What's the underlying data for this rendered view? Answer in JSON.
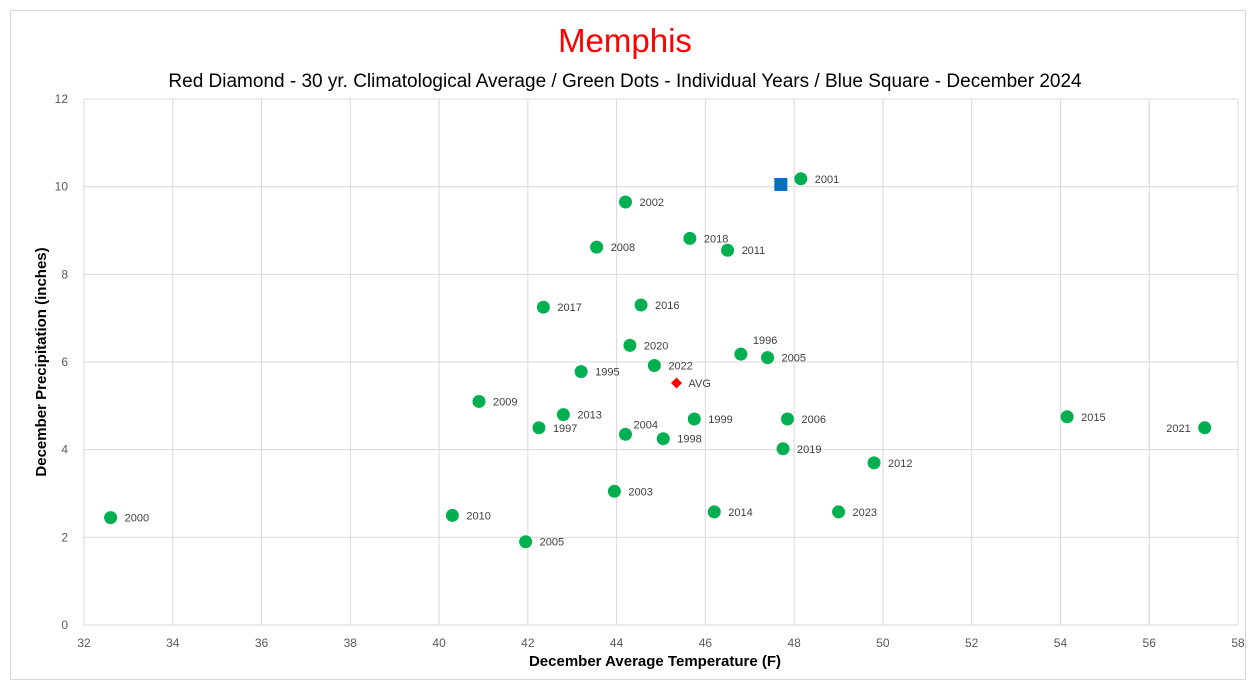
{
  "chart_data": {
    "type": "scatter",
    "title": "Memphis",
    "subtitle": "Red Diamond - 30 yr. Climatological Average / Green Dots - Individual Years / Blue Square - December 2024",
    "xlabel": "December Average Temperature (F)",
    "ylabel": "December Precipitation (inches)",
    "xlim": [
      32,
      58
    ],
    "ylim": [
      0,
      12
    ],
    "x_ticks": [
      32,
      34,
      36,
      38,
      40,
      42,
      44,
      46,
      48,
      50,
      52,
      54,
      56,
      58
    ],
    "y_ticks": [
      0,
      2,
      4,
      6,
      8,
      10,
      12
    ],
    "grid": true,
    "colors": {
      "title": "#ff0000",
      "years": "#00b050",
      "average": "#ff0000",
      "current": "#0070c0",
      "grid": "#d9d9d9"
    },
    "series": [
      {
        "marker": "circle",
        "points": [
          {
            "x": 32.6,
            "y": 2.45,
            "label": "2000"
          },
          {
            "x": 40.3,
            "y": 2.5,
            "label": "2010"
          },
          {
            "x": 40.9,
            "y": 5.1,
            "label": "2009"
          },
          {
            "x": 41.95,
            "y": 1.9,
            "label": "2005"
          },
          {
            "x": 42.25,
            "y": 4.5,
            "label": "1997"
          },
          {
            "x": 42.35,
            "y": 7.25,
            "label": "2017"
          },
          {
            "x": 42.8,
            "y": 4.8,
            "label": "2013"
          },
          {
            "x": 43.2,
            "y": 5.78,
            "label": "1995"
          },
          {
            "x": 43.55,
            "y": 8.62,
            "label": "2008"
          },
          {
            "x": 43.95,
            "y": 3.05,
            "label": "2003"
          },
          {
            "x": 44.2,
            "y": 9.65,
            "label": "2002"
          },
          {
            "x": 44.2,
            "y": 4.35,
            "label": "2004"
          },
          {
            "x": 44.3,
            "y": 6.38,
            "label": "2020"
          },
          {
            "x": 44.55,
            "y": 7.3,
            "label": "2016"
          },
          {
            "x": 44.85,
            "y": 5.92,
            "label": "2022"
          },
          {
            "x": 45.05,
            "y": 4.25,
            "label": "1998"
          },
          {
            "x": 45.65,
            "y": 8.82,
            "label": "2018"
          },
          {
            "x": 45.75,
            "y": 4.7,
            "label": "1999"
          },
          {
            "x": 46.2,
            "y": 2.58,
            "label": "2014"
          },
          {
            "x": 46.5,
            "y": 8.55,
            "label": "2011"
          },
          {
            "x": 46.8,
            "y": 6.18,
            "label": "1996"
          },
          {
            "x": 47.4,
            "y": 6.1,
            "label": "2005"
          },
          {
            "x": 47.75,
            "y": 4.02,
            "label": "2019"
          },
          {
            "x": 47.85,
            "y": 4.7,
            "label": "2006"
          },
          {
            "x": 48.15,
            "y": 10.18,
            "label": "2001"
          },
          {
            "x": 49.0,
            "y": 2.58,
            "label": "2023"
          },
          {
            "x": 49.8,
            "y": 3.7,
            "label": "2012"
          },
          {
            "x": 54.15,
            "y": 4.75,
            "label": "2015"
          },
          {
            "x": 57.25,
            "y": 4.5,
            "label": "2021"
          }
        ]
      },
      {
        "marker": "diamond",
        "points": [
          {
            "x": 45.35,
            "y": 5.52,
            "label": "AVG"
          }
        ]
      },
      {
        "marker": "square",
        "points": [
          {
            "x": 47.7,
            "y": 10.05,
            "label": ""
          }
        ]
      }
    ]
  }
}
